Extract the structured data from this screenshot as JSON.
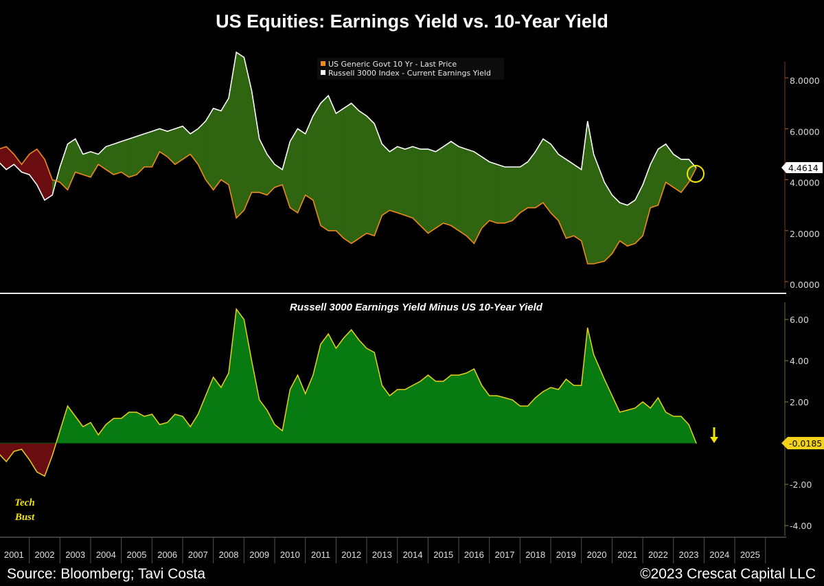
{
  "title": "US Equities: Earnings Yield vs. 10-Year Yield",
  "footer": {
    "source": "Source: Bloomberg; Tavi Costa",
    "copyright": "©2023 Crescat Capital LLC"
  },
  "colors": {
    "ten_year": "#f08a1c",
    "earnings_yield": "#ffffff",
    "spread_line": "#e8d21a",
    "fill_positive": "#2f6410",
    "fill_negative": "#6a0d10",
    "spread_fill_positive": "#087a12",
    "spread_fill_negative": "#6a0d10"
  },
  "chart_data": [
    {
      "type": "line",
      "panel": "top",
      "legend": [
        "US Generic Govt 10 Yr - Last Price",
        "Russell 3000 Index - Current Earnings Yield"
      ],
      "legend_position": "top-center",
      "y_ticks": [
        "8.0000",
        "6.0000",
        "4.0000",
        "2.0000",
        "0.0000"
      ],
      "y_tick_values": [
        8,
        6,
        4,
        2,
        0
      ],
      "ylim": [
        -0.2,
        9.3
      ],
      "last_value_label": "4.4614",
      "x": [
        2001.0,
        2001.25,
        2001.5,
        2001.75,
        2002.0,
        2002.25,
        2002.5,
        2002.75,
        2003.0,
        2003.25,
        2003.5,
        2003.75,
        2004.0,
        2004.25,
        2004.5,
        2004.75,
        2005.0,
        2005.25,
        2005.5,
        2005.75,
        2006.0,
        2006.25,
        2006.5,
        2006.75,
        2007.0,
        2007.25,
        2007.5,
        2007.75,
        2008.0,
        2008.25,
        2008.5,
        2008.75,
        2009.0,
        2009.25,
        2009.5,
        2009.75,
        2010.0,
        2010.25,
        2010.5,
        2010.75,
        2011.0,
        2011.25,
        2011.5,
        2011.75,
        2012.0,
        2012.25,
        2012.5,
        2012.75,
        2013.0,
        2013.25,
        2013.5,
        2013.75,
        2014.0,
        2014.25,
        2014.5,
        2014.75,
        2015.0,
        2015.25,
        2015.5,
        2015.75,
        2016.0,
        2016.25,
        2016.5,
        2016.75,
        2017.0,
        2017.25,
        2017.5,
        2017.75,
        2018.0,
        2018.25,
        2018.5,
        2018.75,
        2019.0,
        2019.25,
        2019.5,
        2019.75,
        2020.0,
        2020.2,
        2020.4,
        2020.75,
        2021.0,
        2021.25,
        2021.5,
        2021.75,
        2022.0,
        2022.25,
        2022.5,
        2022.75,
        2023.0,
        2023.25,
        2023.5,
        2023.75
      ],
      "series": [
        {
          "name": "Russell 3000 Index - Current Earnings Yield",
          "values": [
            4.7,
            4.4,
            4.6,
            4.3,
            4.2,
            3.8,
            3.2,
            3.4,
            4.5,
            5.4,
            5.6,
            5.0,
            5.1,
            5.0,
            5.3,
            5.4,
            5.5,
            5.6,
            5.7,
            5.8,
            5.9,
            6.0,
            5.9,
            6.0,
            6.1,
            5.8,
            6.0,
            6.3,
            6.8,
            6.7,
            7.2,
            9.0,
            8.8,
            7.5,
            5.6,
            5.0,
            4.6,
            4.4,
            5.5,
            6.0,
            5.8,
            6.5,
            7.0,
            7.3,
            6.6,
            6.8,
            7.0,
            6.7,
            6.5,
            6.2,
            5.4,
            5.1,
            5.3,
            5.2,
            5.3,
            5.2,
            5.2,
            5.1,
            5.3,
            5.5,
            5.3,
            5.2,
            5.1,
            4.9,
            4.7,
            4.6,
            4.5,
            4.5,
            4.5,
            4.7,
            5.1,
            5.6,
            5.4,
            5.0,
            4.8,
            4.6,
            4.4,
            6.3,
            5.0,
            3.9,
            3.4,
            3.1,
            3.0,
            3.2,
            3.8,
            4.6,
            5.2,
            5.4,
            5.0,
            4.8,
            4.8,
            4.4614
          ]
        },
        {
          "name": "US Generic Govt 10 Yr - Last Price",
          "values": [
            5.2,
            5.3,
            5.0,
            4.6,
            5.0,
            5.2,
            4.8,
            4.0,
            3.9,
            3.6,
            4.3,
            4.2,
            4.1,
            4.6,
            4.4,
            4.2,
            4.3,
            4.1,
            4.2,
            4.5,
            4.5,
            5.1,
            4.9,
            4.6,
            4.8,
            5.0,
            4.6,
            4.0,
            3.6,
            4.0,
            3.8,
            2.5,
            2.8,
            3.5,
            3.5,
            3.4,
            3.7,
            3.8,
            2.9,
            2.7,
            3.4,
            3.2,
            2.2,
            2.0,
            2.0,
            1.7,
            1.5,
            1.7,
            1.9,
            1.8,
            2.6,
            2.8,
            2.7,
            2.6,
            2.5,
            2.2,
            1.9,
            2.1,
            2.3,
            2.2,
            2.0,
            1.8,
            1.5,
            2.1,
            2.4,
            2.3,
            2.3,
            2.4,
            2.7,
            2.9,
            2.9,
            3.1,
            2.7,
            2.4,
            1.7,
            1.8,
            1.6,
            0.7,
            0.7,
            0.8,
            1.1,
            1.6,
            1.4,
            1.5,
            1.8,
            2.9,
            3.0,
            3.9,
            3.7,
            3.5,
            3.9,
            4.48
          ]
        }
      ]
    },
    {
      "type": "area",
      "panel": "bottom",
      "title": "Russell 3000 Earnings Yield Minus US 10-Year Yield",
      "y_ticks": [
        "6.00",
        "4.00",
        "2.00",
        "-2.00",
        "-4.00"
      ],
      "y_tick_values": [
        6,
        4,
        2,
        -2,
        -4
      ],
      "ylim": [
        -4.5,
        6.5
      ],
      "last_value_label": "-0.0185",
      "annotation": [
        "Tech",
        "Bust"
      ],
      "series_name": "Russell 3000 Earnings Yield Minus US 10-Year Yield"
    }
  ],
  "x_axis": {
    "years": [
      "2001",
      "2002",
      "2003",
      "2004",
      "2005",
      "2006",
      "2007",
      "2008",
      "2009",
      "2010",
      "2011",
      "2012",
      "2013",
      "2014",
      "2015",
      "2016",
      "2017",
      "2018",
      "2019",
      "2020",
      "2021",
      "2022",
      "2023",
      "2024",
      "2025"
    ]
  }
}
